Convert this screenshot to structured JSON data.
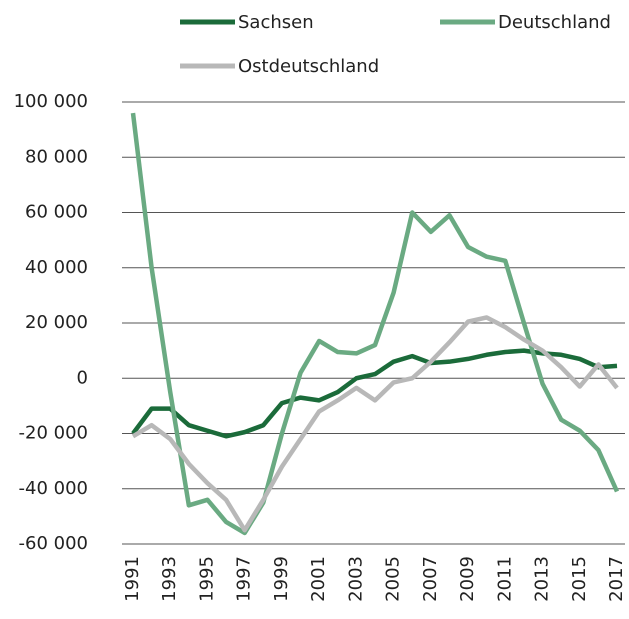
{
  "chart_data": {
    "type": "line",
    "x": [
      1991,
      1992,
      1993,
      1994,
      1995,
      1996,
      1997,
      1998,
      1999,
      2000,
      2001,
      2002,
      2003,
      2004,
      2005,
      2006,
      2007,
      2008,
      2009,
      2010,
      2011,
      2012,
      2013,
      2014,
      2015,
      2016,
      2017
    ],
    "xlim": [
      1991,
      2017
    ],
    "xticks": [
      1991,
      1993,
      1995,
      1997,
      1999,
      2001,
      2003,
      2005,
      2007,
      2009,
      2011,
      2013,
      2015,
      2017
    ],
    "ylim": [
      -60000,
      100000
    ],
    "yticks": [
      {
        "value": -60000,
        "label": "-60 000"
      },
      {
        "value": -40000,
        "label": "-40 000"
      },
      {
        "value": -20000,
        "label": "-20 000"
      },
      0,
      {
        "value": 20000,
        "label": "20 000"
      },
      {
        "value": 40000,
        "label": "40 000"
      },
      {
        "value": 60000,
        "label": "60 000"
      },
      {
        "value": 80000,
        "label": "80 000"
      },
      {
        "value": 100000,
        "label": "100 000"
      }
    ],
    "grid": true,
    "legend": "top",
    "series": [
      {
        "name": "Sachsen",
        "color": "#1b6b3a",
        "values": [
          -20000,
          -11000,
          -11000,
          -17000,
          -19000,
          -21000,
          -19500,
          -17000,
          -9000,
          -7000,
          -8000,
          -5000,
          0,
          1500,
          6000,
          8000,
          5500,
          6000,
          7000,
          8500,
          9500,
          10000,
          9000,
          8500,
          7000,
          4000,
          4500
        ]
      },
      {
        "name": "Deutschland",
        "color": "#6aaa82",
        "values": [
          96000,
          40000,
          -5000,
          -46000,
          -44000,
          -52000,
          -56000,
          -45000,
          -20000,
          2000,
          13500,
          9500,
          9000,
          12000,
          31000,
          60000,
          53000,
          59000,
          47500,
          44000,
          42500,
          20000,
          -2000,
          -15000,
          -19000,
          -26000,
          -41000
        ]
      },
      {
        "name": "Ostdeutschland",
        "color": "#b8b8b8",
        "values": [
          -21000,
          -17000,
          -22000,
          -31000,
          -38000,
          -44000,
          -55000,
          -44000,
          -32000,
          -22000,
          -12000,
          -8000,
          -3500,
          -8000,
          -1500,
          0,
          6000,
          13000,
          20500,
          22000,
          18500,
          14000,
          10000,
          4000,
          -3000,
          5000,
          -3500
        ]
      }
    ]
  }
}
